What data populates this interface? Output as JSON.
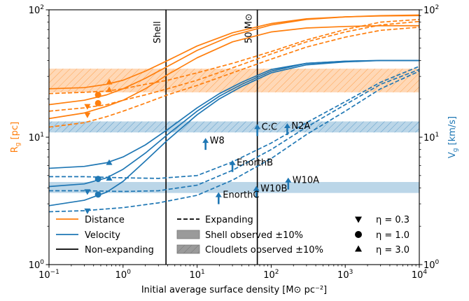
{
  "chart_data": {
    "type": "line",
    "xlabel": "Initial average surface density [M⊙ pc⁻²]",
    "ylabel_left": "R",
    "ylabel_left_sub": "g",
    "ylabel_left_unit": " [pc]",
    "ylabel_right": "V",
    "ylabel_right_sub": "g",
    "ylabel_right_unit": " [km/s]",
    "xscale": "log",
    "yscale": "log",
    "xlim": [
      0.1,
      10000
    ],
    "ylim": [
      1,
      100
    ],
    "x_ticks": [
      0.1,
      1,
      10,
      100,
      1000,
      10000
    ],
    "x_tick_labels": [
      {
        "base": "10",
        "exp": "−1"
      },
      {
        "base": "10",
        "exp": "0"
      },
      {
        "base": "10",
        "exp": "1"
      },
      {
        "base": "10",
        "exp": "2"
      },
      {
        "base": "10",
        "exp": "3"
      },
      {
        "base": "10",
        "exp": "4"
      }
    ],
    "y_ticks": [
      1,
      10,
      100
    ],
    "y_tick_labels": [
      {
        "base": "10",
        "exp": "0"
      },
      {
        "base": "10",
        "exp": "1"
      },
      {
        "base": "10",
        "exp": "2"
      }
    ],
    "colors": {
      "distance": "#ff7f0e",
      "velocity": "#1f77b4",
      "nonexp": "#000000"
    },
    "vlines": [
      {
        "x": 3.8,
        "label": "Shell"
      },
      {
        "x": 65,
        "label": "50 M⊙"
      }
    ],
    "bands": [
      {
        "kind": "cloudlets",
        "color": "#ff7f0e",
        "y": [
          22.5,
          34.5
        ]
      },
      {
        "kind": "cloudlets",
        "color": "#1f77b4",
        "y": [
          10.9,
          13.3
        ]
      },
      {
        "kind": "shell",
        "color": "#1f77b4",
        "y": [
          3.65,
          4.45
        ]
      }
    ],
    "series": [
      {
        "group": "distance",
        "style": "solid",
        "x": [
          0.1,
          0.3,
          0.6,
          1,
          2,
          4,
          10,
          30,
          100,
          300,
          1000,
          3000,
          10000
        ],
        "y": [
          24,
          24.5,
          26,
          28,
          33,
          40,
          52,
          66,
          78,
          85,
          88,
          89.5,
          90
        ]
      },
      {
        "group": "distance",
        "style": "solid",
        "x": [
          0.1,
          0.3,
          0.6,
          1,
          2,
          4,
          10,
          30,
          100,
          300,
          1000,
          3000,
          10000
        ],
        "y": [
          18,
          19.5,
          21.5,
          24,
          29,
          36,
          48,
          63,
          76,
          84,
          88,
          90,
          91
        ]
      },
      {
        "group": "distance",
        "style": "solid",
        "x": [
          0.1,
          0.3,
          0.6,
          1,
          2,
          4,
          10,
          30,
          100,
          300,
          1000,
          3000,
          10000
        ],
        "y": [
          14,
          15.5,
          17.5,
          19.5,
          24,
          31,
          42,
          56,
          67,
          72,
          74,
          75,
          75
        ]
      },
      {
        "group": "distance",
        "style": "dashed",
        "x": [
          0.1,
          0.3,
          0.6,
          1,
          2,
          4,
          10,
          30,
          100,
          300,
          1000,
          3000,
          10000
        ],
        "y": [
          22,
          22.5,
          23,
          24,
          26,
          28,
          32,
          38,
          47,
          58,
          70,
          80,
          84
        ]
      },
      {
        "group": "distance",
        "style": "dashed",
        "x": [
          0.1,
          0.3,
          0.6,
          1,
          2,
          4,
          10,
          30,
          100,
          300,
          1000,
          3000,
          10000
        ],
        "y": [
          16,
          17,
          18,
          19.5,
          21.5,
          24,
          28,
          35,
          45,
          56,
          67,
          76,
          81
        ]
      },
      {
        "group": "distance",
        "style": "dashed",
        "x": [
          0.1,
          0.3,
          0.6,
          1,
          2,
          4,
          10,
          30,
          100,
          300,
          1000,
          3000,
          10000
        ],
        "y": [
          12,
          13,
          14.5,
          16,
          18.5,
          21.5,
          25.5,
          32,
          41,
          51,
          61,
          69,
          73
        ]
      },
      {
        "group": "velocity",
        "style": "solid",
        "x": [
          0.1,
          0.3,
          0.6,
          1,
          2,
          4,
          10,
          20,
          40,
          100,
          300,
          1000,
          3000,
          10000
        ],
        "y": [
          5.7,
          5.9,
          6.3,
          7,
          8.7,
          11.5,
          17,
          22,
          27,
          34,
          38,
          39.5,
          40,
          40
        ]
      },
      {
        "group": "velocity",
        "style": "solid",
        "x": [
          0.1,
          0.3,
          0.6,
          1,
          2,
          4,
          10,
          20,
          40,
          100,
          300,
          1000,
          3000,
          10000
        ],
        "y": [
          4.1,
          4.3,
          4.8,
          5.6,
          7.5,
          10.5,
          16,
          21,
          26,
          33,
          38,
          39.5,
          40,
          40
        ]
      },
      {
        "group": "velocity",
        "style": "solid",
        "x": [
          0.1,
          0.3,
          0.6,
          1,
          2,
          4,
          10,
          20,
          40,
          100,
          300,
          1000,
          3000,
          10000
        ],
        "y": [
          2.9,
          3.2,
          3.7,
          4.5,
          6.5,
          9.5,
          15,
          20,
          25,
          32,
          37,
          39,
          40,
          40
        ]
      },
      {
        "group": "velocity",
        "style": "dashed",
        "x": [
          0.1,
          0.3,
          1,
          3,
          10,
          30,
          100,
          300,
          1000,
          3000,
          10000
        ],
        "y": [
          4.9,
          4.9,
          4.8,
          4.75,
          5,
          6.4,
          9,
          13,
          19,
          27,
          36
        ]
      },
      {
        "group": "velocity",
        "style": "dashed",
        "x": [
          0.1,
          0.3,
          1,
          3,
          10,
          30,
          100,
          300,
          1000,
          3000,
          10000
        ],
        "y": [
          3.8,
          3.8,
          3.75,
          3.8,
          4.2,
          5.5,
          8,
          12,
          18,
          26,
          34
        ]
      },
      {
        "group": "velocity",
        "style": "dashed",
        "x": [
          0.1,
          0.3,
          1,
          3,
          10,
          30,
          100,
          300,
          1000,
          3000,
          10000
        ],
        "y": [
          2.6,
          2.65,
          2.8,
          3.05,
          3.5,
          4.6,
          6.8,
          10.5,
          16,
          24,
          33
        ]
      }
    ],
    "markers": [
      {
        "shape": "triangle-down",
        "color": "#ff7f0e",
        "x": 0.33,
        "y": 15
      },
      {
        "shape": "triangle-down",
        "color": "#ff7f0e",
        "x": 0.33,
        "y": 17.5
      },
      {
        "shape": "circle",
        "color": "#ff7f0e",
        "x": 0.46,
        "y": 18.5
      },
      {
        "shape": "circle",
        "color": "#ff7f0e",
        "x": 0.46,
        "y": 21.5
      },
      {
        "shape": "triangle-up",
        "color": "#ff7f0e",
        "x": 0.65,
        "y": 23.5
      },
      {
        "shape": "triangle-up",
        "color": "#ff7f0e",
        "x": 0.65,
        "y": 27
      },
      {
        "shape": "triangle-down",
        "color": "#1f77b4",
        "x": 0.33,
        "y": 2.65
      },
      {
        "shape": "triangle-down",
        "color": "#1f77b4",
        "x": 0.33,
        "y": 3.75
      },
      {
        "shape": "circle",
        "color": "#1f77b4",
        "x": 0.46,
        "y": 3.55
      },
      {
        "shape": "circle",
        "color": "#1f77b4",
        "x": 0.46,
        "y": 4.7
      },
      {
        "shape": "triangle-up",
        "color": "#1f77b4",
        "x": 0.65,
        "y": 4.75
      },
      {
        "shape": "triangle-up",
        "color": "#1f77b4",
        "x": 0.65,
        "y": 6.3
      }
    ],
    "annotations": [
      {
        "label": "C:C",
        "x": 65,
        "y": 11.3
      },
      {
        "label": "N2A",
        "x": 165,
        "y": 11.5
      },
      {
        "label": "W8",
        "x": 13,
        "y": 8.8
      },
      {
        "label": "EnorthB",
        "x": 30,
        "y": 5.9
      },
      {
        "label": "W10A",
        "x": 170,
        "y": 4.3
      },
      {
        "label": "W10B",
        "x": 63,
        "y": 3.7
      },
      {
        "label": "EnorthC",
        "x": 19.5,
        "y": 3.3
      }
    ],
    "legend": {
      "placement": "bottom",
      "lines": [
        {
          "label": "Distance",
          "kind": "line",
          "color": "#ff7f0e",
          "style": "solid"
        },
        {
          "label": "Velocity",
          "kind": "line",
          "color": "#1f77b4",
          "style": "solid"
        },
        {
          "label": "Non-expanding",
          "kind": "line",
          "color": "#000000",
          "style": "solid"
        }
      ],
      "styles": [
        {
          "label": "Expanding",
          "kind": "line",
          "color": "#000000",
          "style": "dashed"
        },
        {
          "label": "Shell observed ±10%",
          "kind": "patch",
          "hatch": false
        },
        {
          "label": "Cloudlets observed ±10%",
          "kind": "patch",
          "hatch": true
        }
      ],
      "eta": [
        {
          "label": "η = 0.3",
          "shape": "triangle-down"
        },
        {
          "label": "η = 1.0",
          "shape": "circle"
        },
        {
          "label": "η = 3.0",
          "shape": "triangle-up"
        }
      ]
    }
  }
}
